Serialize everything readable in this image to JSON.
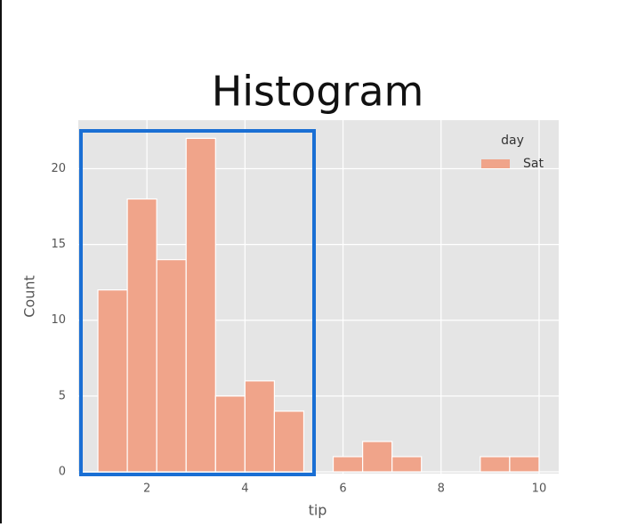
{
  "chart_data": {
    "type": "histogram",
    "title": "Histogram",
    "x_label": "tip",
    "y_label": "Count",
    "bins": [
      1.0,
      1.6,
      2.2,
      2.8,
      3.4,
      4.0,
      4.6,
      5.2,
      5.8,
      6.4,
      7.0,
      7.6,
      8.2,
      8.8,
      9.4,
      10.0
    ],
    "series": [
      {
        "name": "Sat",
        "color": "#f0a48a",
        "values": [
          12,
          18,
          14,
          22,
          5,
          6,
          4,
          0,
          1,
          2,
          1,
          0,
          0,
          1,
          1
        ]
      }
    ],
    "legend_title": "day",
    "legend_position": "upper right",
    "xlim": [
      0.6,
      10.4
    ],
    "xticks": [
      2,
      4,
      6,
      8,
      10
    ],
    "ylim": [
      0,
      23.2
    ],
    "yticks": [
      0,
      5,
      10,
      15,
      20
    ],
    "grid": true
  }
}
